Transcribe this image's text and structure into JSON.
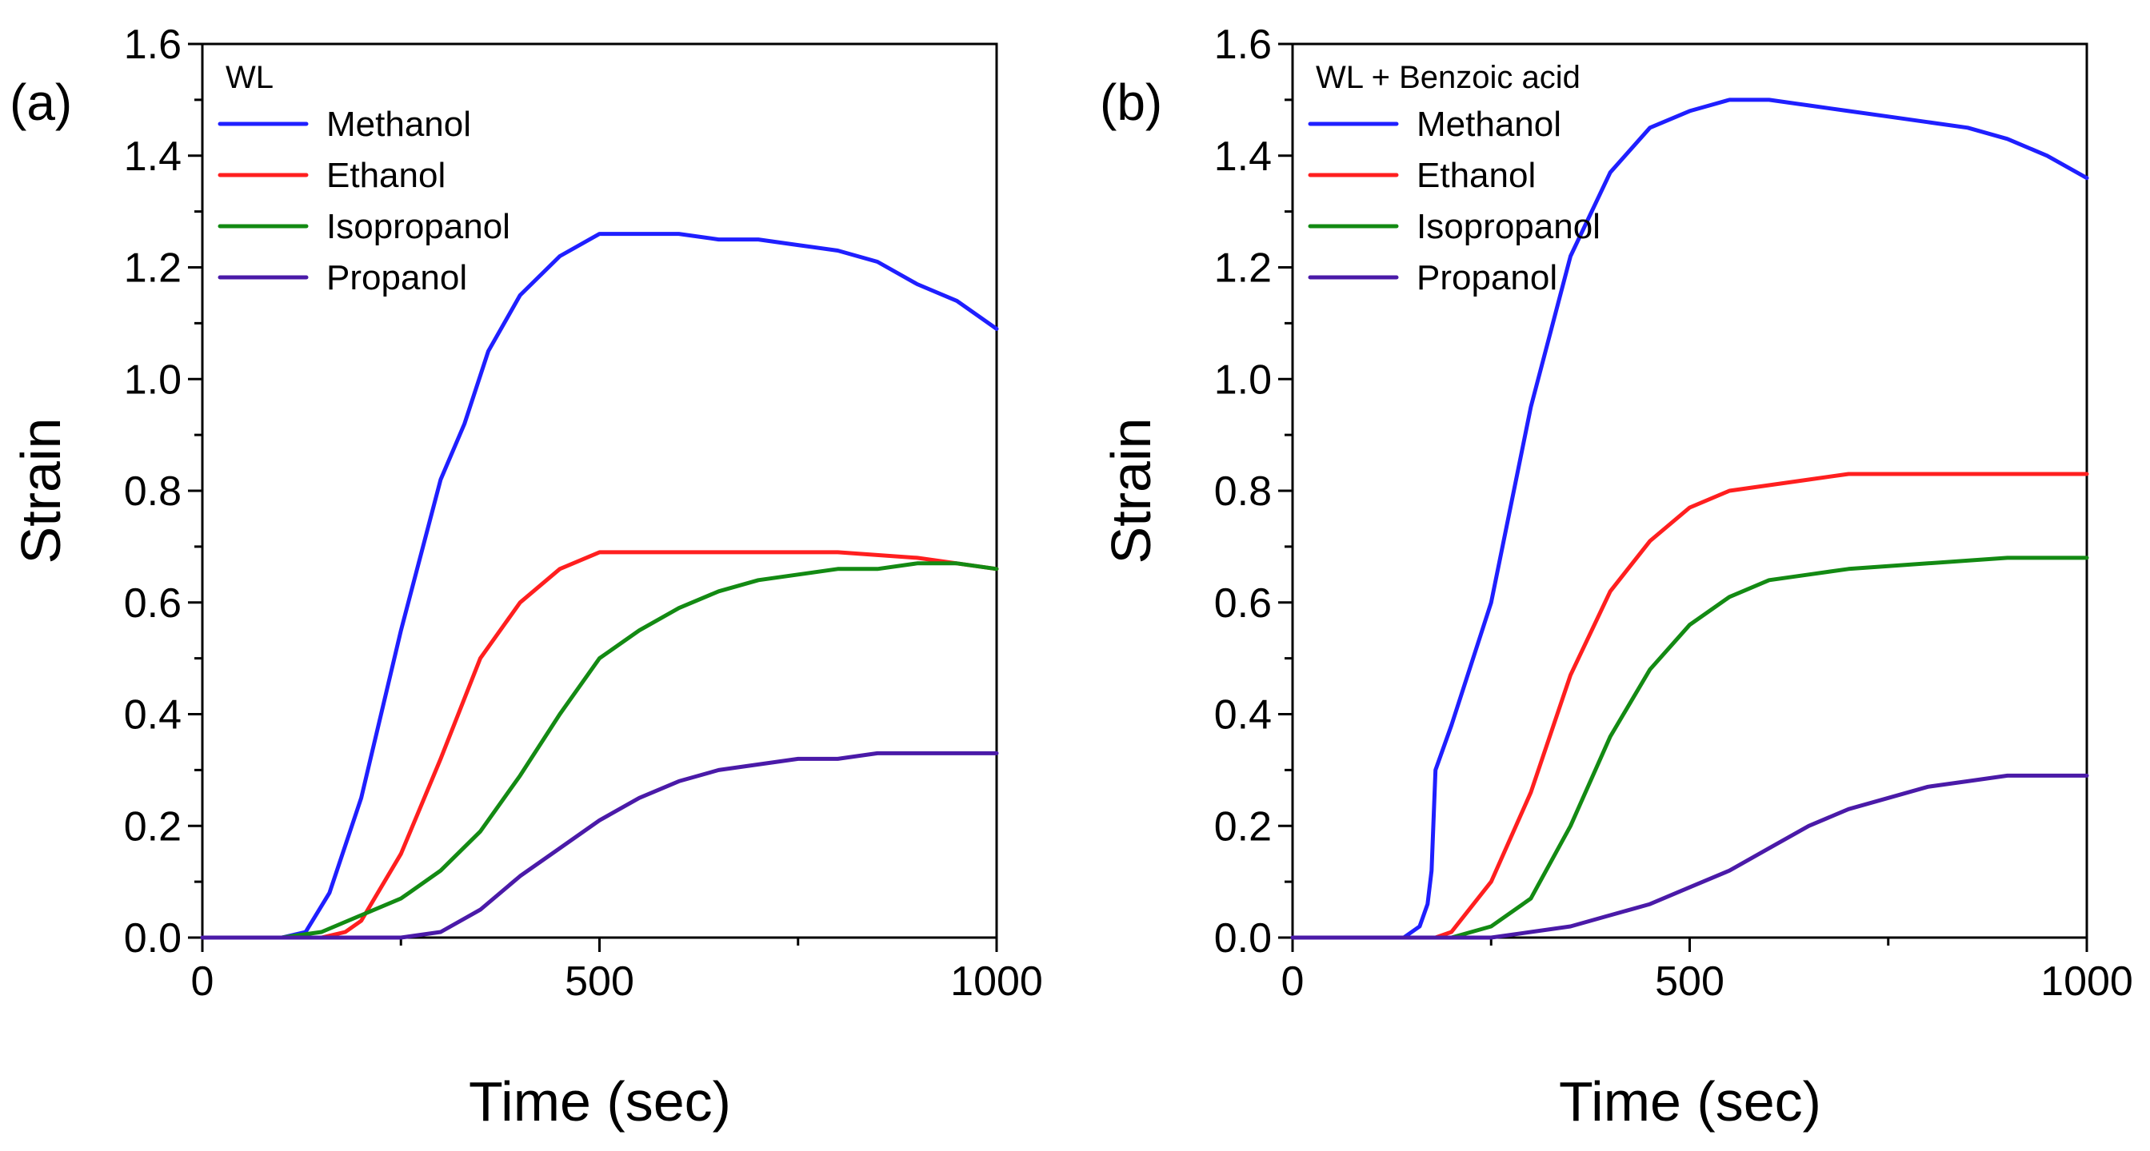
{
  "chart_data": [
    {
      "type": "line",
      "panel_label": "(a)",
      "legend_title": "WL",
      "legend_position": "top-left",
      "xlabel": "Time (sec)",
      "ylabel": "Strain",
      "xlim": [
        0,
        1000
      ],
      "ylim": [
        0,
        1.6
      ],
      "xticks": [
        "0",
        "500",
        "1000"
      ],
      "yticks": [
        "0.0",
        "0.2",
        "0.4",
        "0.6",
        "0.8",
        "1.0",
        "1.2",
        "1.4",
        "1.6"
      ],
      "series": [
        {
          "name": "Methanol",
          "color": "#1f1fff",
          "x": [
            0,
            100,
            130,
            160,
            200,
            250,
            300,
            330,
            360,
            400,
            450,
            500,
            550,
            600,
            650,
            700,
            750,
            800,
            850,
            900,
            950,
            1000
          ],
          "y": [
            0,
            0,
            0.01,
            0.08,
            0.25,
            0.55,
            0.82,
            0.92,
            1.05,
            1.15,
            1.22,
            1.26,
            1.26,
            1.26,
            1.25,
            1.25,
            1.24,
            1.23,
            1.21,
            1.17,
            1.14,
            1.09
          ]
        },
        {
          "name": "Ethanol",
          "color": "#ff1f1f",
          "x": [
            0,
            150,
            180,
            200,
            250,
            300,
            350,
            400,
            450,
            500,
            550,
            600,
            700,
            800,
            900,
            1000
          ],
          "y": [
            0,
            0,
            0.01,
            0.03,
            0.15,
            0.32,
            0.5,
            0.6,
            0.66,
            0.69,
            0.69,
            0.69,
            0.69,
            0.69,
            0.68,
            0.66
          ]
        },
        {
          "name": "Isopropanol",
          "color": "#138a13",
          "x": [
            0,
            100,
            150,
            200,
            250,
            300,
            350,
            400,
            450,
            500,
            550,
            600,
            650,
            700,
            750,
            800,
            850,
            900,
            950,
            1000
          ],
          "y": [
            0,
            0,
            0.01,
            0.04,
            0.07,
            0.12,
            0.19,
            0.29,
            0.4,
            0.5,
            0.55,
            0.59,
            0.62,
            0.64,
            0.65,
            0.66,
            0.66,
            0.67,
            0.67,
            0.66
          ]
        },
        {
          "name": "Propanol",
          "color": "#4a1aa8",
          "x": [
            0,
            250,
            300,
            350,
            400,
            450,
            500,
            550,
            600,
            650,
            700,
            750,
            800,
            850,
            900,
            950,
            1000
          ],
          "y": [
            0,
            0,
            0.01,
            0.05,
            0.11,
            0.16,
            0.21,
            0.25,
            0.28,
            0.3,
            0.31,
            0.32,
            0.32,
            0.33,
            0.33,
            0.33,
            0.33
          ]
        }
      ]
    },
    {
      "type": "line",
      "panel_label": "(b)",
      "legend_title": "WL + Benzoic acid",
      "legend_position": "top-left",
      "xlabel": "Time (sec)",
      "ylabel": "Strain",
      "xlim": [
        0,
        1000
      ],
      "ylim": [
        0,
        1.6
      ],
      "xticks": [
        "0",
        "500",
        "1000"
      ],
      "yticks": [
        "0.0",
        "0.2",
        "0.4",
        "0.6",
        "0.8",
        "1.0",
        "1.2",
        "1.4",
        "1.6"
      ],
      "series": [
        {
          "name": "Methanol",
          "color": "#1f1fff",
          "x": [
            0,
            140,
            160,
            170,
            175,
            180,
            200,
            250,
            300,
            350,
            400,
            450,
            500,
            550,
            600,
            650,
            700,
            750,
            800,
            850,
            900,
            950,
            1000
          ],
          "y": [
            0,
            0,
            0.02,
            0.06,
            0.12,
            0.3,
            0.38,
            0.6,
            0.95,
            1.22,
            1.37,
            1.45,
            1.48,
            1.5,
            1.5,
            1.49,
            1.48,
            1.47,
            1.46,
            1.45,
            1.43,
            1.4,
            1.36
          ]
        },
        {
          "name": "Ethanol",
          "color": "#ff1f1f",
          "x": [
            0,
            180,
            200,
            250,
            300,
            350,
            400,
            450,
            500,
            550,
            600,
            650,
            700,
            800,
            900,
            1000
          ],
          "y": [
            0,
            0,
            0.01,
            0.1,
            0.26,
            0.47,
            0.62,
            0.71,
            0.77,
            0.8,
            0.81,
            0.82,
            0.83,
            0.83,
            0.83,
            0.83
          ]
        },
        {
          "name": "Isopropanol",
          "color": "#138a13",
          "x": [
            0,
            200,
            250,
            300,
            350,
            400,
            450,
            500,
            550,
            600,
            650,
            700,
            800,
            900,
            1000
          ],
          "y": [
            0,
            0,
            0.02,
            0.07,
            0.2,
            0.36,
            0.48,
            0.56,
            0.61,
            0.64,
            0.65,
            0.66,
            0.67,
            0.68,
            0.68
          ]
        },
        {
          "name": "Propanol",
          "color": "#4a1aa8",
          "x": [
            0,
            250,
            300,
            350,
            400,
            450,
            500,
            550,
            600,
            650,
            700,
            750,
            800,
            850,
            900,
            950,
            1000
          ],
          "y": [
            0,
            0,
            0.01,
            0.02,
            0.04,
            0.06,
            0.09,
            0.12,
            0.16,
            0.2,
            0.23,
            0.25,
            0.27,
            0.28,
            0.29,
            0.29,
            0.29
          ]
        }
      ]
    }
  ]
}
